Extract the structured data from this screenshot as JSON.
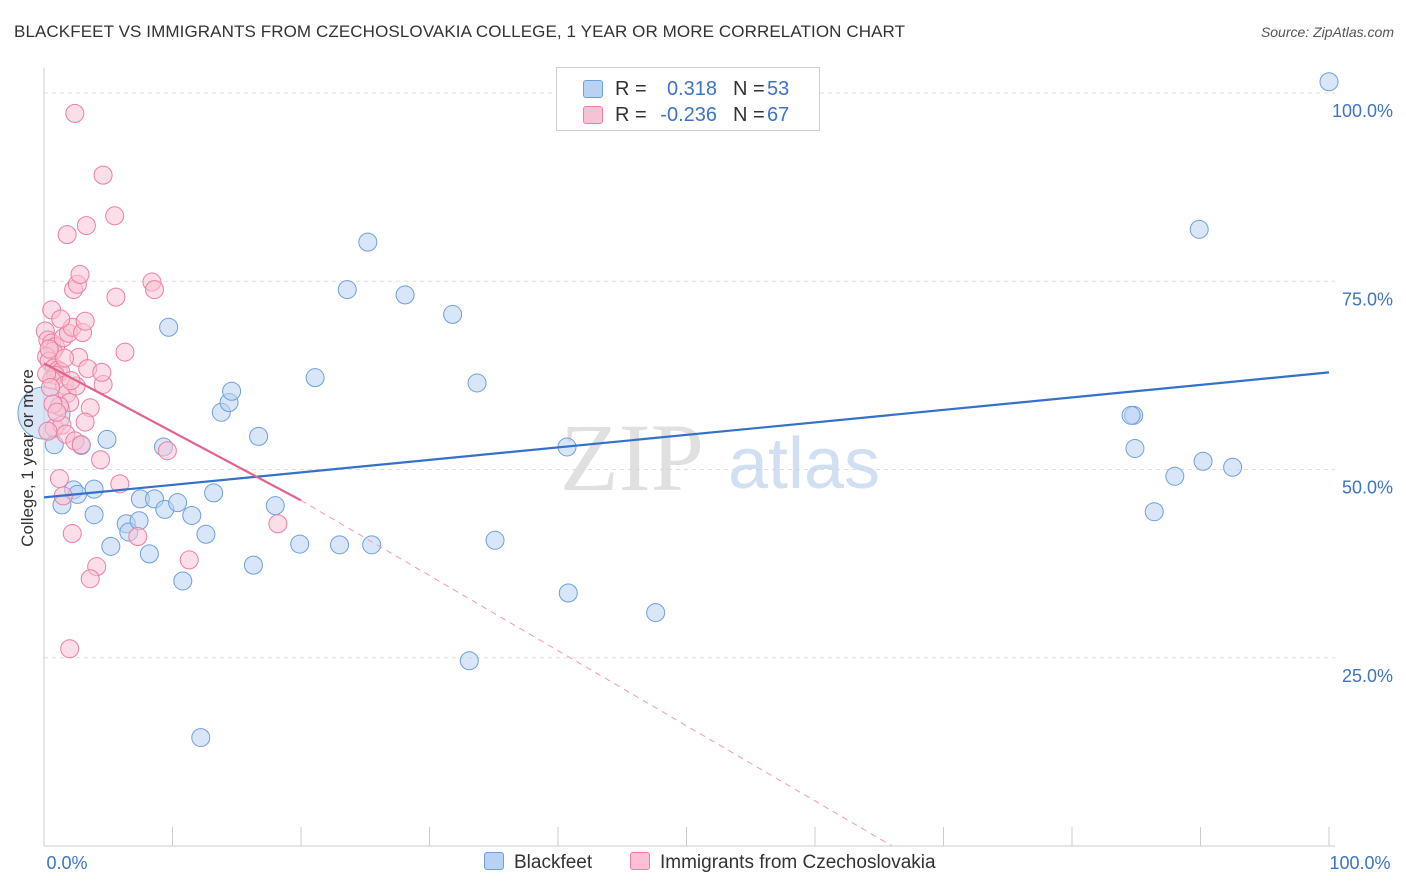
{
  "chart_data": {
    "type": "scatter",
    "title": "BLACKFEET VS IMMIGRANTS FROM CZECHOSLOVAKIA COLLEGE, 1 YEAR OR MORE CORRELATION CHART",
    "source": "Source: ZipAtlas.com",
    "xlabel": "",
    "ylabel": "College, 1 year or more",
    "xlim": [
      0,
      100
    ],
    "ylim": [
      0,
      102
    ],
    "x_tick_labels": [
      "0.0%",
      "100.0%"
    ],
    "y_tick_labels": [
      "100.0%",
      "75.0%",
      "50.0%",
      "25.0%"
    ],
    "y_ticks": [
      100,
      75,
      50,
      25
    ],
    "grid": "horizontal dashed",
    "watermark": {
      "zip": "ZIP",
      "atlas": "atlas"
    },
    "legend": {
      "r_label": "R =",
      "n_label": "N =",
      "entries": [
        {
          "name": "Blackfeet",
          "r": "0.318",
          "n": "53"
        },
        {
          "name": "Immigrants from Czechoslovakia",
          "r": "-0.236",
          "n": "67"
        }
      ]
    },
    "series": [
      {
        "name": "Blackfeet",
        "color": "#6e9fe0",
        "fill": "#b9d1f2",
        "trend": {
          "x": [
            0,
            100
          ],
          "y": [
            46.3,
            62.9
          ]
        },
        "points": [
          [
            0,
            57.5,
            26
          ],
          [
            0.8,
            53.3,
            9
          ],
          [
            1.4,
            45.3,
            9
          ],
          [
            2.3,
            47.3,
            9
          ],
          [
            2.6,
            46.7,
            9
          ],
          [
            3.9,
            47.4,
            9
          ],
          [
            4.9,
            54.0,
            9
          ],
          [
            2.9,
            53.2,
            9
          ],
          [
            3.9,
            44.0,
            9
          ],
          [
            5.2,
            39.8,
            9
          ],
          [
            6.4,
            42.8,
            9
          ],
          [
            6.6,
            41.7,
            9
          ],
          [
            7.4,
            43.2,
            9
          ],
          [
            7.5,
            46.1,
            9
          ],
          [
            8.2,
            38.8,
            9
          ],
          [
            8.6,
            46.1,
            9
          ],
          [
            9.3,
            53.0,
            9
          ],
          [
            9.4,
            44.7,
            9
          ],
          [
            9.7,
            68.9,
            9
          ],
          [
            10.4,
            45.6,
            9
          ],
          [
            10.8,
            35.2,
            9
          ],
          [
            11.5,
            43.9,
            9
          ],
          [
            12.2,
            14.4,
            9
          ],
          [
            12.6,
            41.4,
            9
          ],
          [
            13.2,
            46.9,
            9
          ],
          [
            13.8,
            57.6,
            9
          ],
          [
            14.4,
            58.9,
            9
          ],
          [
            14.6,
            60.4,
            9
          ],
          [
            16.3,
            37.3,
            9
          ],
          [
            16.7,
            54.4,
            9
          ],
          [
            18.0,
            45.2,
            9
          ],
          [
            19.9,
            40.1,
            9
          ],
          [
            21.1,
            62.2,
            9
          ],
          [
            23.0,
            40.0,
            9
          ],
          [
            23.6,
            73.9,
            9
          ],
          [
            25.2,
            80.2,
            9
          ],
          [
            25.5,
            40.0,
            9
          ],
          [
            28.1,
            73.2,
            9
          ],
          [
            31.8,
            70.6,
            9
          ],
          [
            33.1,
            24.6,
            9
          ],
          [
            33.7,
            61.5,
            9
          ],
          [
            35.1,
            40.6,
            9
          ],
          [
            40.7,
            53.0,
            9
          ],
          [
            40.8,
            33.6,
            9
          ],
          [
            47.6,
            31.0,
            9
          ],
          [
            84.8,
            57.2,
            9
          ],
          [
            84.6,
            57.2,
            9
          ],
          [
            84.9,
            52.8,
            9
          ],
          [
            86.4,
            44.4,
            9
          ],
          [
            88.0,
            49.1,
            9
          ],
          [
            90.2,
            51.1,
            9
          ],
          [
            92.5,
            50.3,
            9
          ],
          [
            89.9,
            81.9,
            9
          ],
          [
            100,
            101.5,
            9
          ]
        ]
      },
      {
        "name": "Immigrants from Czechoslovakia",
        "color": "#ef7ea1",
        "fill": "#f8c2d4",
        "trend": {
          "x": [
            0,
            20
          ],
          "y": [
            64.1,
            45.9
          ]
        },
        "trend_dashed": {
          "x": [
            20,
            66
          ],
          "y": [
            45.9,
            0
          ]
        },
        "points": [
          [
            0.6,
            71.2,
            9
          ],
          [
            0.1,
            68.4,
            9
          ],
          [
            0.3,
            67.2,
            9
          ],
          [
            0.6,
            66.8,
            9
          ],
          [
            0.9,
            66.3,
            9
          ],
          [
            0.7,
            65.7,
            9
          ],
          [
            0.2,
            65.0,
            9
          ],
          [
            0.4,
            64.4,
            9
          ],
          [
            0.8,
            63.5,
            9
          ],
          [
            1.1,
            63.2,
            9
          ],
          [
            1.3,
            63.0,
            9
          ],
          [
            0.9,
            62.5,
            9
          ],
          [
            0.6,
            61.9,
            9
          ],
          [
            1.6,
            61.2,
            9
          ],
          [
            1.8,
            60.1,
            9
          ],
          [
            2.0,
            58.9,
            9
          ],
          [
            1.2,
            58.4,
            9
          ],
          [
            0.8,
            55.5,
            9
          ],
          [
            1.4,
            55.9,
            9
          ],
          [
            1.7,
            54.7,
            9
          ],
          [
            2.4,
            53.8,
            9
          ],
          [
            2.9,
            53.3,
            9
          ],
          [
            2.5,
            61.1,
            9
          ],
          [
            2.1,
            61.8,
            9
          ],
          [
            2.7,
            64.9,
            9
          ],
          [
            1.5,
            67.5,
            9
          ],
          [
            1.9,
            68.1,
            9
          ],
          [
            2.2,
            68.9,
            9
          ],
          [
            3.0,
            68.2,
            9
          ],
          [
            3.2,
            69.7,
            9
          ],
          [
            2.3,
            73.9,
            9
          ],
          [
            2.6,
            74.6,
            9
          ],
          [
            2.8,
            75.9,
            9
          ],
          [
            3.4,
            63.4,
            9
          ],
          [
            3.6,
            58.2,
            9
          ],
          [
            3.2,
            56.3,
            9
          ],
          [
            4.6,
            61.3,
            9
          ],
          [
            4.5,
            62.9,
            9
          ],
          [
            4.4,
            51.3,
            9
          ],
          [
            4.1,
            37.1,
            9
          ],
          [
            3.6,
            35.5,
            9
          ],
          [
            2.2,
            41.5,
            9
          ],
          [
            1.2,
            48.8,
            9
          ],
          [
            1.5,
            46.5,
            9
          ],
          [
            2.0,
            26.2,
            9
          ],
          [
            2.4,
            97.3,
            9
          ],
          [
            4.6,
            89.1,
            9
          ],
          [
            5.5,
            83.7,
            9
          ],
          [
            3.3,
            82.4,
            9
          ],
          [
            1.8,
            81.2,
            9
          ],
          [
            5.6,
            72.9,
            9
          ],
          [
            6.3,
            65.6,
            9
          ],
          [
            8.4,
            74.9,
            9
          ],
          [
            8.6,
            73.9,
            9
          ],
          [
            9.6,
            52.5,
            9
          ],
          [
            5.9,
            48.1,
            9
          ],
          [
            7.3,
            41.1,
            9
          ],
          [
            11.3,
            38.0,
            9
          ],
          [
            18.2,
            42.8,
            9
          ],
          [
            0.4,
            66.0,
            9
          ],
          [
            0.2,
            62.7,
            9
          ],
          [
            0.5,
            60.9,
            9
          ],
          [
            0.3,
            55.1,
            9
          ],
          [
            0.7,
            58.7,
            9
          ],
          [
            1.0,
            57.6,
            9
          ],
          [
            1.3,
            70.0,
            9
          ],
          [
            1.6,
            64.8,
            9
          ]
        ]
      }
    ]
  }
}
